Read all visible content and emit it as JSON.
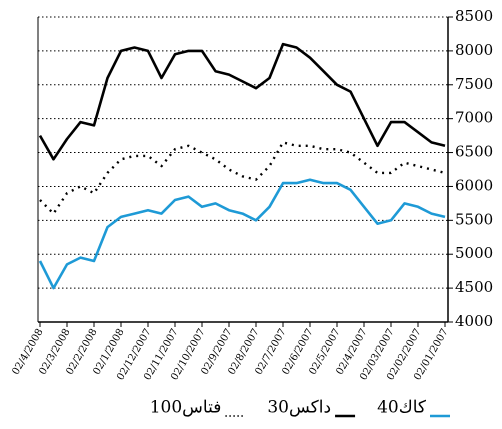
{
  "chart_data": {
    "type": "line",
    "categories": [
      "02/4/2008",
      null,
      "02/3/2008",
      null,
      "02/2/2008",
      null,
      "02/1/2008",
      null,
      "02/12/2007",
      null,
      "02/11/2007",
      null,
      "02/10/2007",
      null,
      "02/9/2007",
      null,
      "02/8/2007",
      null,
      "02/7/2007",
      null,
      "02/6/2007",
      null,
      "02/5/2007",
      null,
      "02/4/2007",
      null,
      "02/03/2007",
      null,
      "02/02/2007",
      null,
      "02/01/2007"
    ],
    "series": [
      {
        "name": "كاك40",
        "color": "#1e9ad6",
        "line_style": "solid",
        "values": [
          4900,
          4500,
          4850,
          4950,
          4900,
          5400,
          5550,
          5600,
          5650,
          5600,
          5800,
          5850,
          5700,
          5750,
          5650,
          5600,
          5500,
          5700,
          6050,
          6050,
          6100,
          6050,
          6050,
          5950,
          5700,
          5450,
          5500,
          5750,
          5700,
          5600,
          5550
        ]
      },
      {
        "name": "داكس30",
        "color": "#000000",
        "line_style": "solid",
        "values": [
          6750,
          6400,
          6700,
          6950,
          6900,
          7600,
          8000,
          8050,
          8000,
          7600,
          7950,
          8000,
          8000,
          7700,
          7650,
          7550,
          7450,
          7600,
          8100,
          8050,
          7900,
          7700,
          7500,
          7400,
          7000,
          6600,
          6950,
          6950,
          6800,
          6650,
          6600
        ]
      },
      {
        "name": "فتاس100",
        "color": "#000000",
        "line_style": "dotted",
        "values": [
          5800,
          5600,
          5900,
          6000,
          5900,
          6200,
          6400,
          6450,
          6450,
          6300,
          6550,
          6600,
          6500,
          6400,
          6250,
          6150,
          6100,
          6300,
          6650,
          6600,
          6600,
          6550,
          6550,
          6500,
          6350,
          6200,
          6200,
          6350,
          6300,
          6250,
          6200
        ]
      }
    ],
    "ylim": [
      4000,
      8500
    ],
    "yticks": [
      4000,
      4500,
      5000,
      5500,
      6000,
      6500,
      7000,
      7500,
      8000,
      8500
    ],
    "grid": true,
    "y_axis_side": "right",
    "legend": "bottom"
  }
}
